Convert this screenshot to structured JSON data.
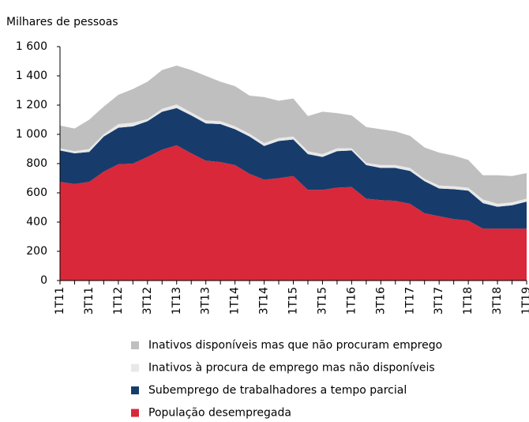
{
  "chart_data": {
    "type": "stacked-area",
    "y_label": "Milhares de pessoas",
    "categories": [
      "1T11",
      null,
      "3T11",
      null,
      "1T12",
      null,
      "3T12",
      null,
      "1T13",
      null,
      "3T13",
      null,
      "1T14",
      null,
      "3T14",
      null,
      "1T15",
      null,
      "3T15",
      null,
      "1T16",
      null,
      "3T16",
      null,
      "1T17",
      null,
      "3T17",
      null,
      "1T18",
      null,
      "3T18",
      null,
      "1T19"
    ],
    "ylim": [
      0,
      1600
    ],
    "yticks": [
      0,
      200,
      400,
      600,
      800,
      {
        "value": 1000,
        "label": "1 000"
      },
      {
        "value": 1200,
        "label": "1 200"
      },
      {
        "value": 1400,
        "label": "1 400"
      },
      {
        "value": 1600,
        "label": "1 600"
      }
    ],
    "series": [
      {
        "name": "População desempregada",
        "color": "#d9283a",
        "values": [
          675,
          660,
          675,
          745,
          795,
          800,
          845,
          895,
          925,
          870,
          820,
          810,
          790,
          730,
          690,
          700,
          715,
          620,
          620,
          635,
          640,
          560,
          550,
          545,
          525,
          460,
          440,
          420,
          410,
          355,
          355,
          355,
          355
        ]
      },
      {
        "name": "Subemprego de trabalhadores a tempo parcial",
        "color": "#173c6c",
        "values": [
          215,
          210,
          205,
          240,
          250,
          255,
          245,
          260,
          255,
          260,
          255,
          260,
          245,
          255,
          230,
          255,
          250,
          245,
          225,
          250,
          250,
          230,
          220,
          225,
          225,
          220,
          190,
          205,
          205,
          175,
          150,
          160,
          185
        ]
      },
      {
        "name": "Inativos à procura de emprego mas não disponíveis",
        "color": "#e8e8e8",
        "values": [
          15,
          15,
          20,
          15,
          25,
          25,
          15,
          20,
          25,
          20,
          20,
          20,
          20,
          20,
          20,
          20,
          20,
          20,
          20,
          20,
          15,
          15,
          20,
          20,
          20,
          15,
          20,
          20,
          20,
          25,
          20,
          20,
          20
        ]
      },
      {
        "name": "Inativos disponíveis mas que não procuram emprego",
        "color": "#bfbfbf",
        "values": [
          155,
          155,
          200,
          190,
          200,
          230,
          255,
          265,
          265,
          290,
          305,
          270,
          275,
          260,
          315,
          255,
          260,
          240,
          290,
          240,
          225,
          245,
          245,
          230,
          220,
          215,
          225,
          210,
          190,
          165,
          195,
          180,
          175
        ]
      }
    ]
  }
}
